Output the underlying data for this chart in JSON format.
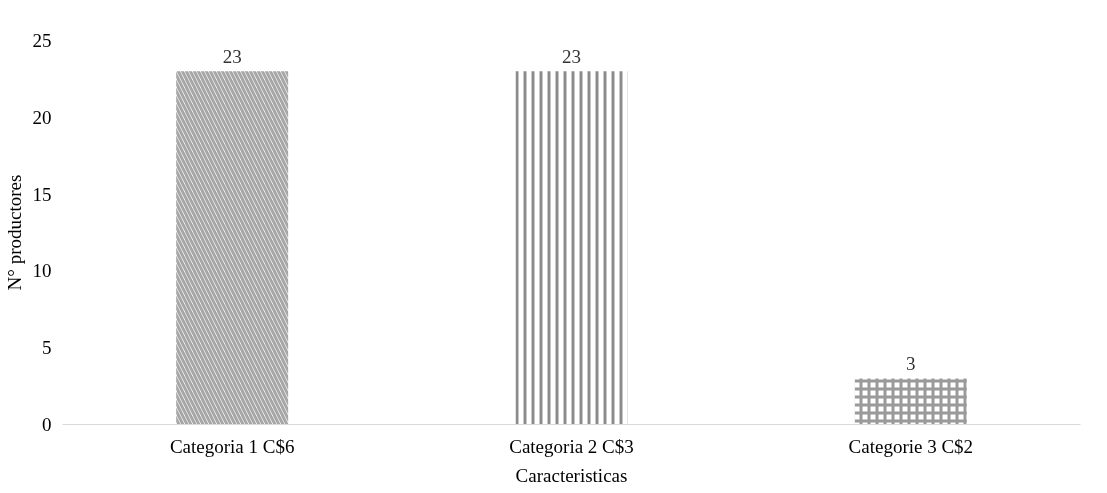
{
  "chart_data": {
    "type": "bar",
    "xlabel": "Caracteristicas",
    "ylabel": "N° productores",
    "categories": [
      "Categoria 1 C$6",
      "Categoria 2 C$3",
      "Categorie 3 C$2"
    ],
    "values": [
      23,
      23,
      3
    ],
    "colors": [
      "#a6a6a6",
      "#8c8c8c",
      "#9a9a9a"
    ],
    "ylim": [
      0,
      25
    ],
    "yticks": [
      0,
      5,
      10,
      15,
      20,
      25
    ],
    "grid": false,
    "data_labels": true
  }
}
